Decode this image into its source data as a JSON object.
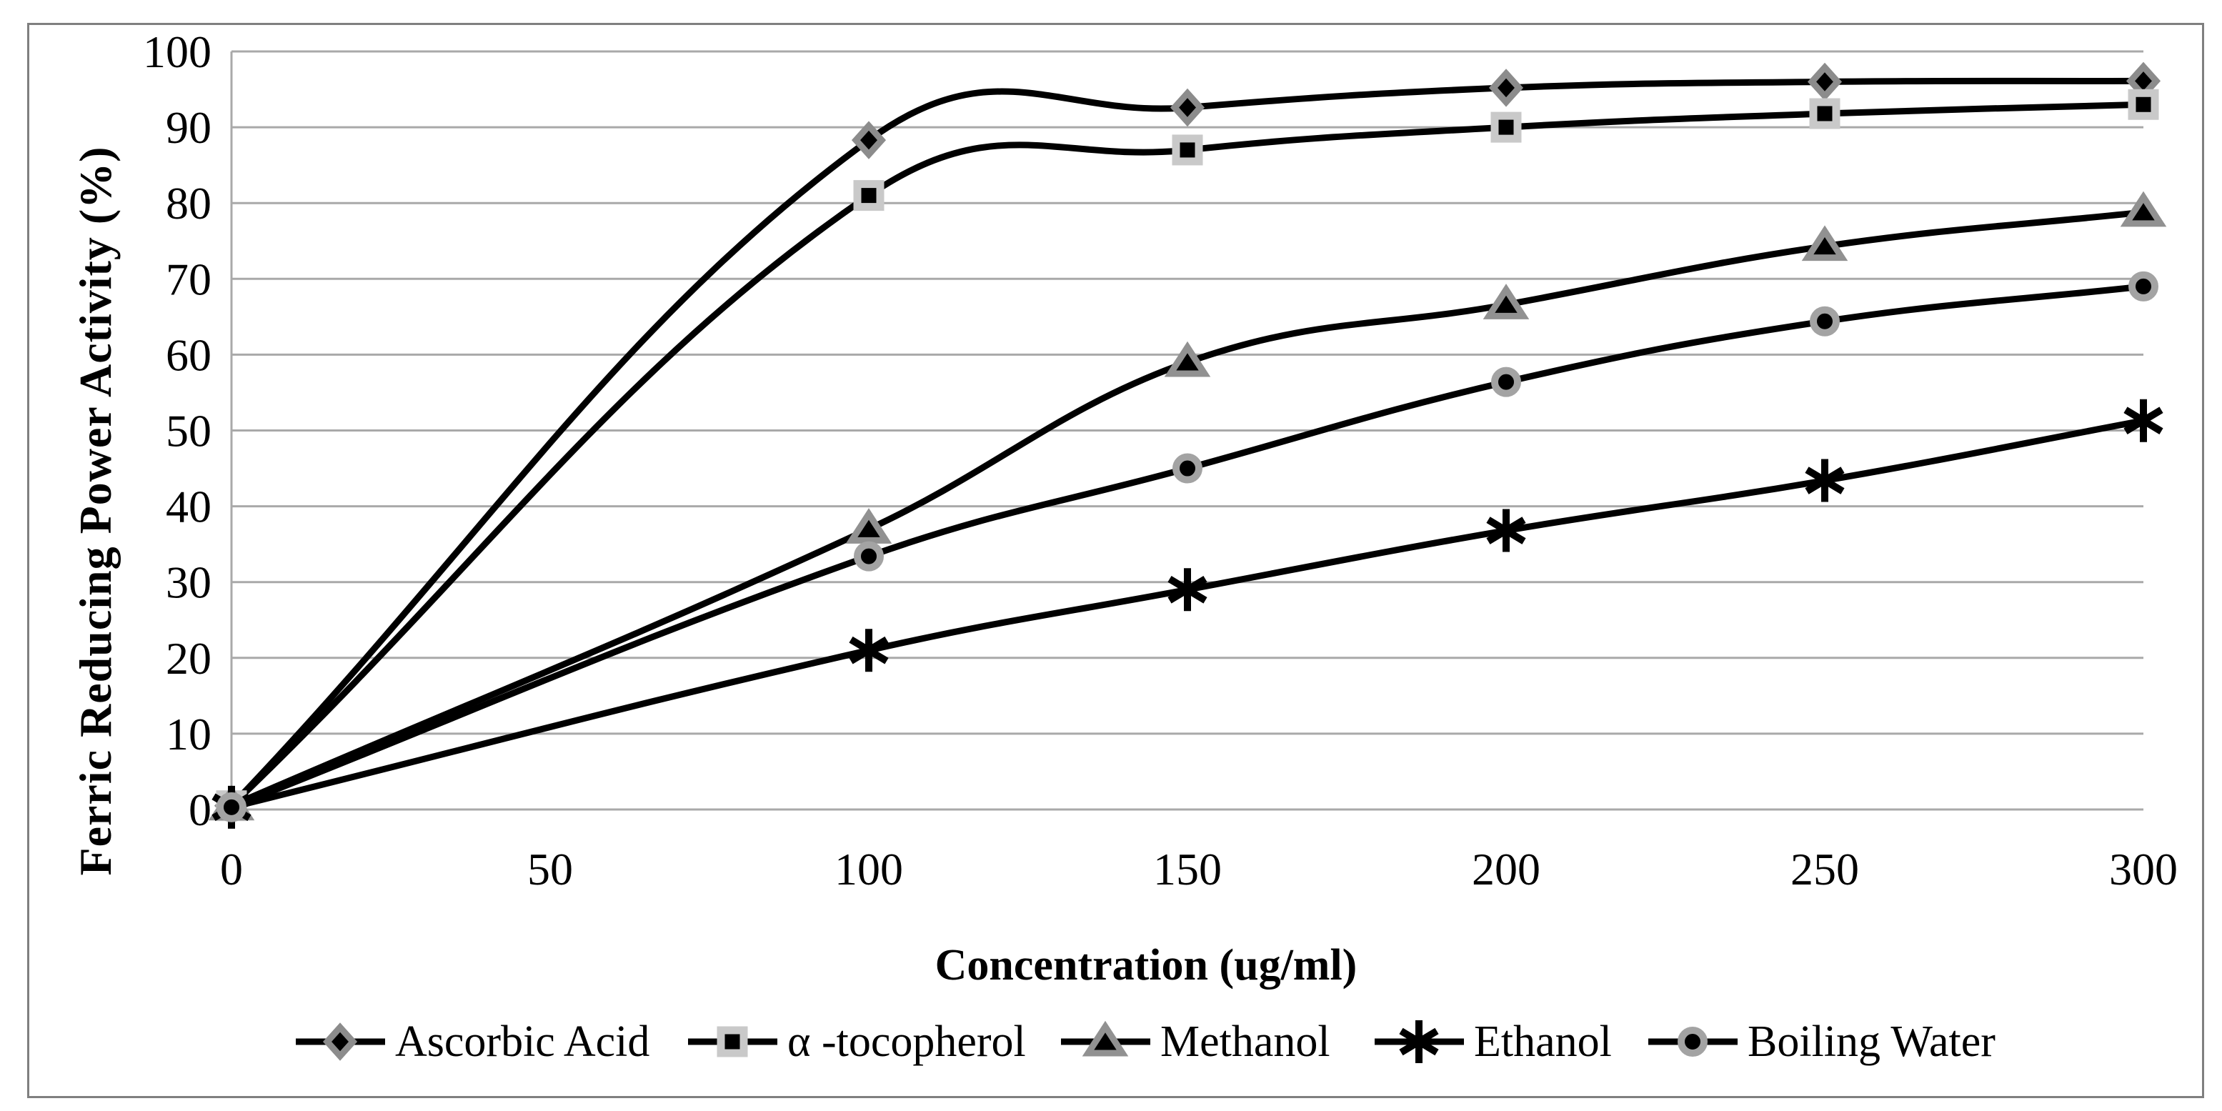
{
  "chart_data": {
    "type": "line",
    "title": "",
    "xlabel": "Concentration (ug/ml)",
    "ylabel": "Ferric Reducing Power Activity (%)",
    "x": [
      0,
      100,
      150,
      200,
      250,
      300
    ],
    "xticks": [
      0,
      50,
      100,
      150,
      200,
      250,
      300
    ],
    "yticks": [
      0,
      10,
      20,
      30,
      40,
      50,
      60,
      70,
      80,
      90,
      100
    ],
    "xlim": [
      0,
      300
    ],
    "ylim": [
      0,
      100
    ],
    "grid": true,
    "grid_color": "#a9a9a9",
    "line_color": "#000000",
    "figure_border_color": "#7f7f7f",
    "legend_position": "bottom",
    "series": [
      {
        "name": "Ascorbic Acid",
        "marker": "diamond",
        "outline": "#8c8c8c",
        "values": [
          0.5,
          88.3,
          92.6,
          95.2,
          96.0,
          96.1
        ]
      },
      {
        "name": "α -tocopherol",
        "marker": "square",
        "outline": "#c9c9c9",
        "values": [
          0.5,
          81.0,
          87.0,
          90.0,
          91.8,
          93.0
        ]
      },
      {
        "name": "Methanol",
        "marker": "triangle",
        "outline": "#919191",
        "values": [
          0.5,
          37.0,
          59.0,
          66.6,
          74.3,
          78.8
        ]
      },
      {
        "name": "Ethanol",
        "marker": "asterisk",
        "outline": "#000000",
        "values": [
          0.3,
          21.0,
          29.0,
          36.8,
          43.4,
          51.3
        ]
      },
      {
        "name": "Boiling Water",
        "marker": "circle",
        "outline": "#a3a3a3",
        "values": [
          0.3,
          33.4,
          45.0,
          56.4,
          64.4,
          69.0
        ]
      }
    ]
  }
}
